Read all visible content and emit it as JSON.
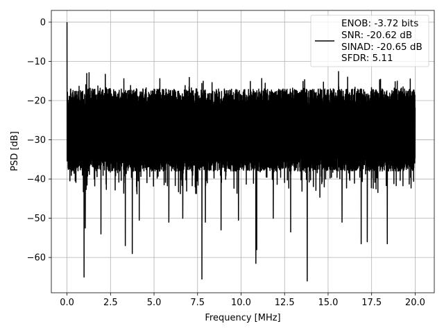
{
  "chart_data": {
    "type": "line",
    "title": "",
    "xlabel": "Frequency [MHz]",
    "ylabel": "PSD [dB]",
    "xlim": [
      -0.9,
      21.1
    ],
    "ylim": [
      -69,
      3
    ],
    "x_ticks": [
      0.0,
      2.5,
      5.0,
      7.5,
      10.0,
      12.5,
      15.0,
      17.5,
      20.0
    ],
    "x_tick_labels": [
      "0.0",
      "2.5",
      "5.0",
      "7.5",
      "10.0",
      "12.5",
      "15.0",
      "17.5",
      "20.0"
    ],
    "y_ticks": [
      0,
      -10,
      -20,
      -30,
      -40,
      -50,
      -60
    ],
    "y_tick_labels": [
      "0",
      "−10",
      "−20",
      "−30",
      "−40",
      "−50",
      "−60"
    ],
    "grid": true,
    "legend_position": "top-right",
    "series": [
      {
        "color": "#000000",
        "x_range": [
          0.0,
          20.0
        ],
        "peak": {
          "x": 0.0,
          "y": 0.0
        },
        "noise_band": {
          "typical_top": -17,
          "typical_bottom": -38,
          "max_top": -12,
          "floor_typical": -45
        },
        "deep_dips": [
          {
            "x": 0.98,
            "y": -65.0
          },
          {
            "x": 1.05,
            "y": -52.5
          },
          {
            "x": 1.95,
            "y": -54.0
          },
          {
            "x": 3.35,
            "y": -57.0
          },
          {
            "x": 3.75,
            "y": -59.0
          },
          {
            "x": 4.15,
            "y": -50.5
          },
          {
            "x": 5.85,
            "y": -51.0
          },
          {
            "x": 6.65,
            "y": -50.0
          },
          {
            "x": 7.75,
            "y": -65.5
          },
          {
            "x": 7.95,
            "y": -51.0
          },
          {
            "x": 8.85,
            "y": -53.0
          },
          {
            "x": 9.85,
            "y": -50.5
          },
          {
            "x": 10.85,
            "y": -61.5
          },
          {
            "x": 10.9,
            "y": -58.0
          },
          {
            "x": 11.85,
            "y": -50.0
          },
          {
            "x": 12.85,
            "y": -53.5
          },
          {
            "x": 13.8,
            "y": -66.0
          },
          {
            "x": 15.8,
            "y": -51.0
          },
          {
            "x": 16.9,
            "y": -56.5
          },
          {
            "x": 17.25,
            "y": -56.0
          },
          {
            "x": 18.4,
            "y": -56.5
          }
        ]
      }
    ],
    "legend": {
      "lines": [
        "ENOB: -3.72 bits",
        "SNR: -20.62 dB",
        "SINAD: -20.65 dB",
        "SFDR: 5.11"
      ]
    }
  }
}
